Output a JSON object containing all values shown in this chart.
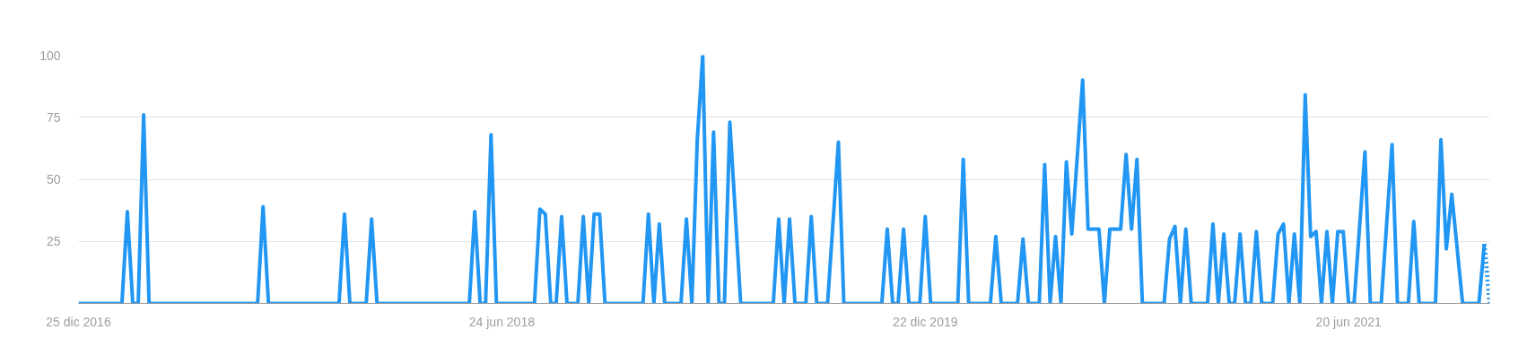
{
  "chart_data": {
    "type": "line",
    "grid": "y",
    "xlim": [
      "2016-12-25",
      "2021-12-19"
    ],
    "ylim": [
      0,
      100
    ],
    "yticks": [
      {
        "value": 0,
        "label": null
      },
      25,
      50,
      75,
      100
    ],
    "xticks": [
      {
        "value": "2016-12-25",
        "label": "25 dic 2016"
      },
      {
        "value": "2018-06-24",
        "label": "24 jun 2018"
      },
      {
        "value": "2019-12-22",
        "label": "22 dic 2019"
      },
      {
        "value": "2021-06-20",
        "label": "20 jun 2021"
      }
    ],
    "series": [
      {
        "color": "#2196f3",
        "line_style": "solid",
        "x": [
          "2016-12-25",
          "2017-02-19",
          "2017-02-26",
          "2017-03-05",
          "2017-03-12",
          "2017-03-19",
          "2017-03-26",
          "2017-08-13",
          "2017-08-20",
          "2017-08-27",
          "2017-11-26",
          "2017-12-03",
          "2017-12-10",
          "2017-12-31",
          "2018-01-07",
          "2018-01-14",
          "2018-05-13",
          "2018-05-20",
          "2018-05-27",
          "2018-06-03",
          "2018-06-10",
          "2018-06-17",
          "2018-08-05",
          "2018-08-12",
          "2018-08-19",
          "2018-08-26",
          "2018-09-02",
          "2018-09-09",
          "2018-09-16",
          "2018-09-30",
          "2018-10-07",
          "2018-10-14",
          "2018-10-21",
          "2018-10-28",
          "2018-11-04",
          "2018-12-23",
          "2018-12-30",
          "2019-01-06",
          "2019-01-13",
          "2019-01-20",
          "2019-02-10",
          "2019-02-17",
          "2019-02-24",
          "2019-03-03",
          "2019-03-10",
          "2019-03-17",
          "2019-03-24",
          "2019-03-31",
          "2019-04-07",
          "2019-04-14",
          "2019-04-28",
          "2019-06-09",
          "2019-06-16",
          "2019-06-23",
          "2019-06-30",
          "2019-07-07",
          "2019-07-21",
          "2019-07-28",
          "2019-08-04",
          "2019-08-18",
          "2019-09-01",
          "2019-09-08",
          "2019-10-27",
          "2019-11-03",
          "2019-11-10",
          "2019-11-17",
          "2019-11-24",
          "2019-12-01",
          "2019-12-15",
          "2019-12-22",
          "2019-12-29",
          "2020-02-02",
          "2020-02-09",
          "2020-02-16",
          "2020-03-15",
          "2020-03-22",
          "2020-03-29",
          "2020-04-19",
          "2020-04-26",
          "2020-05-03",
          "2020-05-17",
          "2020-05-24",
          "2020-05-31",
          "2020-06-07",
          "2020-06-14",
          "2020-06-21",
          "2020-06-28",
          "2020-07-12",
          "2020-07-19",
          "2020-08-02",
          "2020-08-09",
          "2020-08-16",
          "2020-08-30",
          "2020-09-06",
          "2020-09-13",
          "2020-09-20",
          "2020-09-27",
          "2020-10-25",
          "2020-11-01",
          "2020-11-08",
          "2020-11-15",
          "2020-11-22",
          "2020-11-29",
          "2020-12-20",
          "2020-12-27",
          "2021-01-03",
          "2021-01-10",
          "2021-01-17",
          "2021-01-24",
          "2021-01-31",
          "2021-02-07",
          "2021-02-14",
          "2021-02-21",
          "2021-02-28",
          "2021-03-14",
          "2021-03-21",
          "2021-03-28",
          "2021-04-04",
          "2021-04-11",
          "2021-04-18",
          "2021-04-25",
          "2021-05-02",
          "2021-05-09",
          "2021-05-16",
          "2021-05-23",
          "2021-05-30",
          "2021-06-06",
          "2021-06-13",
          "2021-06-20",
          "2021-06-27",
          "2021-07-11",
          "2021-07-18",
          "2021-08-01",
          "2021-08-15",
          "2021-08-22",
          "2021-09-05",
          "2021-09-12",
          "2021-09-19",
          "2021-10-10",
          "2021-10-17",
          "2021-10-24",
          "2021-10-31",
          "2021-11-14",
          "2021-12-05",
          "2021-12-12"
        ],
        "values": [
          0,
          0,
          37,
          0,
          0,
          76,
          0,
          0,
          39,
          0,
          0,
          36,
          0,
          0,
          34,
          0,
          0,
          37,
          0,
          0,
          68,
          0,
          0,
          38,
          36,
          0,
          0,
          35,
          0,
          0,
          35,
          0,
          36,
          36,
          0,
          0,
          36,
          0,
          32,
          0,
          0,
          34,
          0,
          66,
          100,
          0,
          69,
          0,
          0,
          73,
          0,
          0,
          34,
          0,
          34,
          0,
          0,
          35,
          0,
          0,
          65,
          0,
          0,
          30,
          0,
          0,
          30,
          0,
          0,
          35,
          0,
          0,
          58,
          0,
          0,
          27,
          0,
          0,
          26,
          0,
          0,
          56,
          0,
          27,
          0,
          57,
          28,
          90,
          30,
          30,
          0,
          30,
          30,
          60,
          30,
          58,
          0,
          0,
          26,
          31,
          0,
          30,
          0,
          0,
          32,
          0,
          28,
          0,
          0,
          28,
          0,
          0,
          29,
          0,
          0,
          28,
          32,
          0,
          28,
          0,
          84,
          27,
          29,
          0,
          29,
          0,
          29,
          29,
          0,
          0,
          61,
          0,
          0,
          64,
          0,
          0,
          33,
          0,
          0,
          66,
          22,
          44,
          0,
          0,
          24
        ]
      },
      {
        "color": "#2196f3",
        "line_style": "dotted",
        "x": [
          "2021-12-12",
          "2021-12-19"
        ],
        "values": [
          24,
          0
        ]
      }
    ]
  }
}
